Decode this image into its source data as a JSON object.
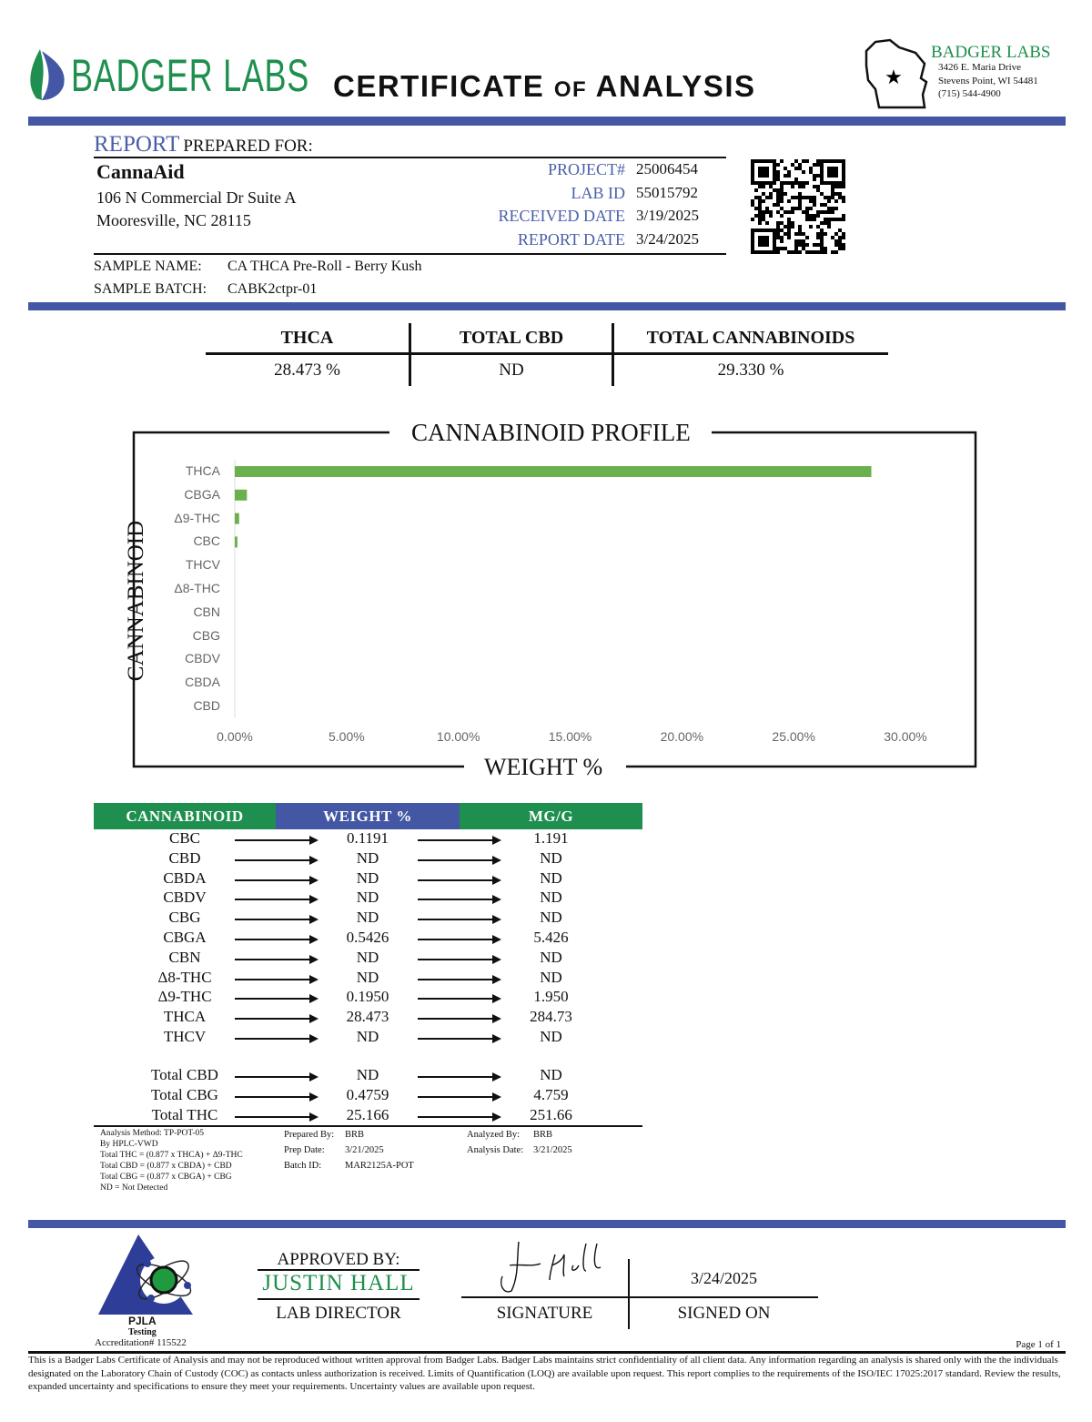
{
  "header": {
    "logo_text": "BADGER LABS",
    "title_parts": [
      "CERTIFICATE",
      "OF",
      "ANALYSIS"
    ],
    "lab": {
      "name": "BADGER LABS",
      "address1": "3426 E. Maria Drive",
      "address2": "Stevens Point, WI 54481",
      "phone": "(715) 544-4900"
    }
  },
  "report": {
    "label_report": "REPORT",
    "label_prepared": "PREPARED FOR:",
    "client": "CannaAid",
    "address1": "106 N Commercial Dr Suite A",
    "address2": "Mooresville, NC 28115",
    "fields": [
      {
        "label": "PROJECT#",
        "value": "25006454"
      },
      {
        "label": "LAB ID",
        "value": "55015792"
      },
      {
        "label": "RECEIVED DATE",
        "value": "3/19/2025"
      },
      {
        "label": "REPORT DATE",
        "value": "3/24/2025"
      }
    ],
    "sample_name_label": "SAMPLE NAME:",
    "sample_name": "CA THCA Pre-Roll - Berry Kush",
    "sample_batch_label": "SAMPLE BATCH:",
    "sample_batch": "CABK2ctpr-01"
  },
  "summary": [
    {
      "label": "THCA",
      "value": "28.473 %"
    },
    {
      "label": "TOTAL CBD",
      "value": "ND"
    },
    {
      "label": "TOTAL CANNABINOIDS",
      "value": "29.330 %"
    }
  ],
  "chart_data": {
    "type": "bar",
    "orientation": "horizontal",
    "title": "CANNABINOID PROFILE",
    "xlabel": "WEIGHT %",
    "ylabel": "CANNABINOID",
    "categories": [
      "THCA",
      "CBGA",
      "Δ9-THC",
      "CBC",
      "THCV",
      "Δ8-THC",
      "CBN",
      "CBG",
      "CBDV",
      "CBDA",
      "CBD"
    ],
    "values": [
      28.473,
      0.5426,
      0.195,
      0.1191,
      0,
      0,
      0,
      0,
      0,
      0,
      0
    ],
    "xlim": [
      0,
      30
    ],
    "xticks": [
      "0.00%",
      "5.00%",
      "10.00%",
      "15.00%",
      "20.00%",
      "25.00%",
      "30.00%"
    ],
    "grid": false,
    "bar_color": "#6ab04c"
  },
  "table": {
    "headers": [
      "CANNABINOID",
      "WEIGHT %",
      "MG/G"
    ],
    "header_colors": [
      "#1e8f4e",
      "#4357a4",
      "#1e8f4e"
    ],
    "rows": [
      [
        "CBC",
        "0.1191",
        "1.191"
      ],
      [
        "CBD",
        "ND",
        "ND"
      ],
      [
        "CBDA",
        "ND",
        "ND"
      ],
      [
        "CBDV",
        "ND",
        "ND"
      ],
      [
        "CBG",
        "ND",
        "ND"
      ],
      [
        "CBGA",
        "0.5426",
        "5.426"
      ],
      [
        "CBN",
        "ND",
        "ND"
      ],
      [
        "Δ8-THC",
        "ND",
        "ND"
      ],
      [
        "Δ9-THC",
        "0.1950",
        "1.950"
      ],
      [
        "THCA",
        "28.473",
        "284.73"
      ],
      [
        "THCV",
        "ND",
        "ND"
      ]
    ],
    "totals": [
      [
        "Total CBD",
        "ND",
        "ND"
      ],
      [
        "Total CBG",
        "0.4759",
        "4.759"
      ],
      [
        "Total THC",
        "25.166",
        "251.66"
      ]
    ]
  },
  "notes": {
    "method": [
      "Analysis Method: TP-POT-05",
      "By HPLC-VWD",
      "Total THC = (0.877 x  THCA) + Δ9-THC",
      "Total CBD = (0.877 x  CBDA) + CBD",
      "Total CBG = (0.877 x  CBGA) + CBG",
      "ND = Not Detected"
    ],
    "prepared_by_label": "Prepared By:",
    "prepared_by": "BRB",
    "prep_date_label": "Prep Date:",
    "prep_date": "3/21/2025",
    "batch_label": "Batch ID:",
    "batch": "MAR2125A-POT",
    "analyzed_by_label": "Analyzed By:",
    "analyzed_by": "BRB",
    "analysis_date_label": "Analysis Date:",
    "analysis_date": "3/21/2025"
  },
  "approval": {
    "approved_label": "APPROVED BY:",
    "name": "JUSTIN HALL",
    "role": "LAB DIRECTOR",
    "signature_label": "SIGNATURE",
    "signed_on_label": "SIGNED ON",
    "signed_on": "3/24/2025",
    "signature": "J. Hall"
  },
  "accreditation": {
    "logo_text": "PJLA",
    "sub": "Testing",
    "number": "Accreditation# 115522"
  },
  "footer": {
    "page": "Page 1 of 1",
    "disclaimer": "This is a Badger Labs Certificate of Analysis and may not be reproduced without written approval from Badger Labs. Badger Labs maintains strict confidentiality of all client data. Any information regarding an analysis is shared only with the the individuals designated on the Laboratory Chain of Custody (COC) as contacts unless authorization is received. Limits of Quantification (LOQ) are available upon request. This report complies to the requirements of the ISO/IEC 17025:2017 standard. Review the results, expanded uncertainty and specifications to ensure they meet your requirements. Uncertainty values are available upon request."
  }
}
